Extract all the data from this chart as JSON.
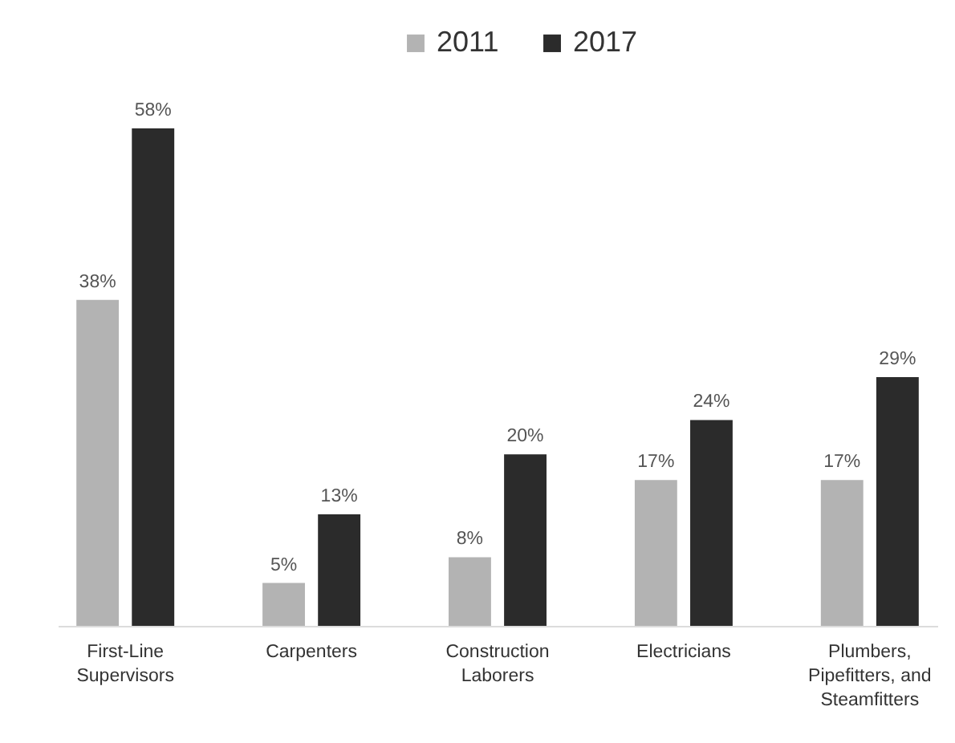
{
  "chart_data": {
    "type": "bar",
    "categories": [
      "First-Line Supervisors",
      "Carpenters",
      "Construction Laborers",
      "Electricians",
      "Plumbers, Pipefitters, and Steamfitters"
    ],
    "series": [
      {
        "name": "2011",
        "color": "#b3b3b3",
        "values": [
          38,
          5,
          8,
          17,
          17
        ],
        "value_labels": [
          "38%",
          "5%",
          "8%",
          "17%",
          "17%"
        ]
      },
      {
        "name": "2017",
        "color": "#2b2b2b",
        "values": [
          58,
          13,
          20,
          24,
          29
        ],
        "value_labels": [
          "58%",
          "13%",
          "20%",
          "24%",
          "29%"
        ]
      }
    ],
    "legend": "top",
    "tick_labels": "x"
  }
}
